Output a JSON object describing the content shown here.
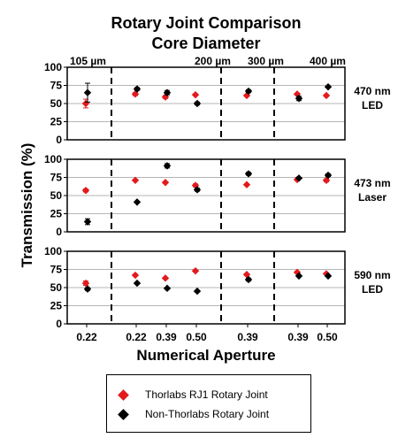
{
  "chart_data": {
    "type": "scatter",
    "title": "Rotary Joint Comparison",
    "subtitle": "Core Diameter",
    "xlabel": "Numerical Aperture",
    "ylabel": "Transmission (%)",
    "ylim": [
      0,
      100
    ],
    "yticks": [
      0,
      25,
      50,
      75,
      100
    ],
    "grid": "horizontal",
    "core_groups": [
      "105 µm",
      "200 µm",
      "300 µm",
      "400 µm"
    ],
    "categories": [
      {
        "group": "105 µm",
        "na": "0.22"
      },
      {
        "group": "200 µm",
        "na": "0.22"
      },
      {
        "group": "200 µm",
        "na": "0.39"
      },
      {
        "group": "200 µm",
        "na": "0.50"
      },
      {
        "group": "300 µm",
        "na": "0.39"
      },
      {
        "group": "400 µm",
        "na": "0.39"
      },
      {
        "group": "400 µm",
        "na": "0.50"
      }
    ],
    "panels": [
      {
        "label_line1": "470 nm",
        "label_line2": "LED",
        "series": [
          {
            "name": "Thorlabs RJ1 Rotary Joint",
            "values": [
              50,
              63,
              59,
              62,
              61,
              63,
              61
            ],
            "errors": [
              6,
              2,
              2,
              1,
              1,
              1,
              1
            ]
          },
          {
            "name": "Non-Thorlabs Rotary Joint",
            "values": [
              65,
              70,
              65,
              50,
              67,
              57,
              73
            ],
            "errors": [
              13,
              2,
              3,
              2,
              2,
              3,
              1
            ]
          }
        ]
      },
      {
        "label_line1": "473 nm",
        "label_line2": "Laser",
        "series": [
          {
            "name": "Thorlabs RJ1 Rotary Joint",
            "values": [
              57,
              71,
              68,
              64,
              65,
              72,
              71
            ],
            "errors": [
              2,
              1,
              1,
              2,
              1,
              1,
              2
            ]
          },
          {
            "name": "Non-Thorlabs Rotary Joint",
            "values": [
              14,
              41,
              91,
              58,
              80,
              74,
              78
            ],
            "errors": [
              4,
              1,
              3,
              2,
              2,
              1,
              2
            ]
          }
        ]
      },
      {
        "label_line1": "590 nm",
        "label_line2": "LED",
        "series": [
          {
            "name": "Thorlabs RJ1 Rotary Joint",
            "values": [
              56,
              67,
              63,
              73,
              68,
              71,
              69
            ],
            "errors": [
              3,
              1,
              1,
              1,
              1,
              1,
              1
            ]
          },
          {
            "name": "Non-Thorlabs Rotary Joint",
            "values": [
              48,
              56,
              49,
              45,
              61,
              66,
              66
            ],
            "errors": [
              2,
              1,
              1,
              1,
              2,
              1,
              1
            ]
          }
        ]
      }
    ],
    "legend": {
      "position": "bottom",
      "entries": [
        {
          "label": "Thorlabs RJ1 Rotary Joint",
          "color": "#e31a1c"
        },
        {
          "label": "Non-Thorlabs Rotary Joint",
          "color": "#000000"
        }
      ]
    },
    "colors": {
      "thorlabs": "#e31a1c",
      "other": "#000000",
      "grid": "#b5b5b5"
    }
  }
}
